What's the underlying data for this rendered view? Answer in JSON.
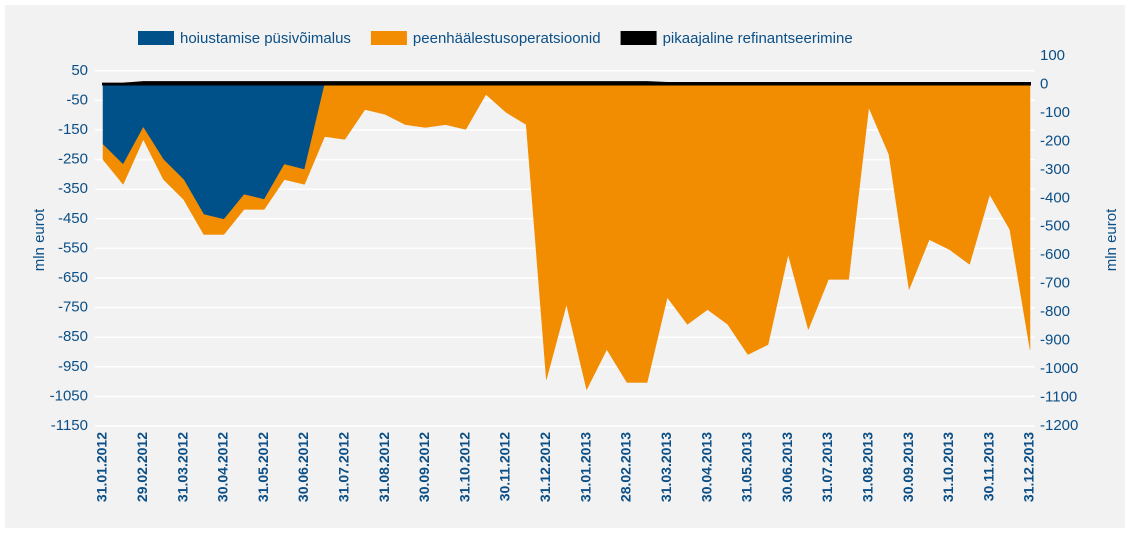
{
  "chart_data": {
    "type": "area",
    "stacked": true,
    "categories": [
      "31.01.2012",
      null,
      "29.02.2012",
      null,
      "31.03.2012",
      null,
      "30.04.2012",
      null,
      "31.05.2012",
      null,
      "30.06.2012",
      null,
      "31.07.2012",
      null,
      "31.08.2012",
      null,
      "30.09.2012",
      null,
      "31.10.2012",
      null,
      "30.11.2012",
      null,
      "31.12.2012",
      null,
      "31.01.2013",
      null,
      "28.02.2013",
      null,
      "31.03.2013",
      null,
      "30.04.2013",
      null,
      "31.05.2013",
      null,
      "30.06.2013",
      null,
      "31.07.2013",
      null,
      "31.08.2013",
      null,
      "30.09.2013",
      null,
      "31.10.2013",
      null,
      "30.11.2013",
      null,
      "31.12.2013"
    ],
    "series": [
      {
        "name": "hoiustamise püsivõimalus",
        "color": "#00508a",
        "axis": "y2",
        "values": [
          -211,
          -281,
          -151,
          -264,
          -334,
          -457,
          -474,
          -387,
          -404,
          -281,
          -299,
          0,
          0,
          0,
          0,
          0,
          0,
          0,
          0,
          0,
          0,
          0,
          0,
          0,
          0,
          0,
          0,
          0,
          0,
          0,
          0,
          0,
          0,
          0,
          0,
          0,
          0,
          0,
          0,
          0,
          0,
          0,
          0,
          0,
          0,
          0,
          0
        ]
      },
      {
        "name": "peenhäälestusoperatsioonid",
        "color": "#f28c00",
        "axis": "y2",
        "values": [
          -53,
          -70,
          -42,
          -70,
          -70,
          -70,
          -53,
          -52,
          -35,
          -53,
          -52,
          -183,
          -193,
          -88,
          -105,
          -141,
          -151,
          -141,
          -158,
          -35,
          -98,
          -141,
          -1037,
          -773,
          -1072,
          -931,
          -1047,
          -1047,
          -748,
          -843,
          -791,
          -843,
          -949,
          -914,
          -597,
          -861,
          -685,
          -685,
          -81,
          -246,
          -720,
          -545,
          -580,
          -632,
          -387,
          -510,
          -931
        ]
      },
      {
        "name": "pikaajaline refinantseerimine",
        "color": "#000000",
        "axis": "y2",
        "values": [
          3,
          3,
          8,
          8,
          8,
          8,
          8,
          8,
          8,
          8,
          8,
          8,
          8,
          8,
          8,
          8,
          8,
          8,
          8,
          8,
          8,
          8,
          8,
          8,
          8,
          8,
          8,
          8,
          5,
          5,
          5,
          5,
          5,
          5,
          5,
          5,
          5,
          5,
          5,
          5,
          5,
          5,
          5,
          5,
          5,
          5,
          5
        ]
      }
    ],
    "ylabel": "mln eurot",
    "y2label": "mln eurot",
    "ylim": [
      -1150,
      100
    ],
    "yticks": [
      50,
      -50,
      -150,
      -250,
      -350,
      -450,
      -550,
      -650,
      -750,
      -850,
      -950,
      -1050,
      -1150
    ],
    "y2lim": [
      -1200,
      100
    ],
    "y2ticks": [
      100,
      0,
      -100,
      -200,
      -300,
      -400,
      -500,
      -600,
      -700,
      -800,
      -900,
      -1000,
      -1100,
      -1200
    ],
    "grid": true,
    "legend": "top"
  }
}
